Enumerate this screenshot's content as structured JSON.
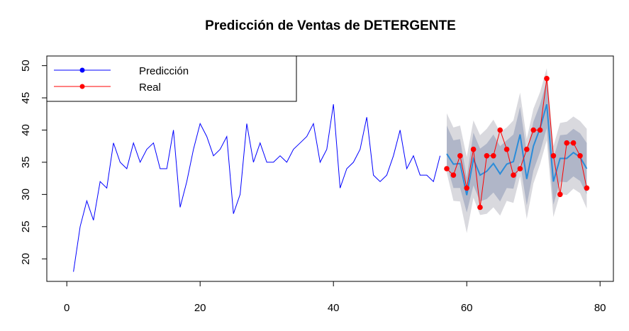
{
  "chart_data": {
    "type": "line",
    "title": "Predicción de Ventas de DETERGENTE",
    "xlabel": "",
    "ylabel": "",
    "xlim": [
      -3,
      82
    ],
    "ylim": [
      16.5,
      51.5
    ],
    "xticks": [
      0,
      20,
      40,
      60,
      80
    ],
    "yticks": [
      20,
      25,
      30,
      35,
      40,
      45,
      50
    ],
    "grid": false,
    "legend_position": "top-left",
    "legend": [
      {
        "label": "Predicción",
        "color": "#0000ff"
      },
      {
        "label": "Real",
        "color": "#ff0000"
      }
    ],
    "history": {
      "color": "#0000ff",
      "x": [
        1,
        2,
        3,
        4,
        5,
        6,
        7,
        8,
        9,
        10,
        11,
        12,
        13,
        14,
        15,
        16,
        17,
        18,
        19,
        20,
        21,
        22,
        23,
        24,
        25,
        26,
        27,
        28,
        29,
        30,
        31,
        32,
        33,
        34,
        35,
        36,
        37,
        38,
        39,
        40,
        41,
        42,
        43,
        44,
        45,
        46,
        47,
        48,
        49,
        50,
        51,
        52,
        53,
        54,
        55,
        56
      ],
      "y": [
        18,
        25,
        29,
        26,
        32,
        31,
        38,
        35,
        34,
        38,
        35,
        37,
        38,
        34,
        34,
        40,
        28,
        32,
        37,
        41,
        39,
        36,
        37,
        39,
        27,
        30,
        41,
        35,
        38,
        35,
        35,
        36,
        35,
        37,
        38,
        39,
        41,
        35,
        37,
        44,
        31,
        34,
        35,
        37,
        42,
        33,
        32,
        33,
        36,
        40,
        34,
        36,
        33,
        33,
        32,
        36
      ]
    },
    "forecast": {
      "color": "#2b8cd9",
      "x": [
        57,
        58,
        59,
        60,
        61,
        62,
        63,
        64,
        65,
        66,
        67,
        68,
        69,
        70,
        71,
        72,
        73,
        74,
        75,
        76,
        77,
        78
      ],
      "mean": [
        36.3,
        34.7,
        34.8,
        29.9,
        35.5,
        33.0,
        33.6,
        34.8,
        33.2,
        34.7,
        35.1,
        39.3,
        32.4,
        37.5,
        40.3,
        44.0,
        32.0,
        35.6,
        35.6,
        36.5,
        35.8,
        34.0
      ],
      "lo80": [
        34.6,
        31.0,
        31.0,
        27.2,
        31.4,
        28.9,
        29.3,
        30.3,
        28.9,
        31.0,
        30.9,
        35.0,
        28.3,
        33.7,
        36.6,
        40.3,
        28.4,
        32.0,
        31.9,
        32.8,
        32.1,
        30.0
      ],
      "hi80": [
        40.7,
        38.4,
        38.6,
        32.6,
        39.6,
        37.1,
        37.9,
        39.3,
        37.5,
        38.4,
        39.3,
        43.6,
        36.5,
        41.3,
        44.0,
        47.7,
        35.6,
        39.2,
        39.3,
        40.2,
        39.5,
        38.0
      ],
      "lo95": [
        33.4,
        29.0,
        28.9,
        24.0,
        29.5,
        26.8,
        27.0,
        28.0,
        26.7,
        29.0,
        28.7,
        32.8,
        26.2,
        31.7,
        34.7,
        38.4,
        26.5,
        30.1,
        29.9,
        30.9,
        30.2,
        27.8
      ],
      "hi95": [
        42.6,
        40.4,
        40.7,
        35.8,
        41.5,
        39.2,
        40.2,
        41.6,
        39.7,
        40.4,
        41.5,
        45.8,
        38.6,
        43.3,
        45.9,
        49.6,
        37.5,
        41.1,
        41.3,
        42.1,
        41.4,
        40.2
      ]
    },
    "real": {
      "color": "#ff0000",
      "x": [
        57,
        58,
        59,
        60,
        61,
        62,
        63,
        64,
        65,
        66,
        67,
        68,
        69,
        70,
        71,
        72,
        73,
        74,
        75,
        76,
        77,
        78
      ],
      "y": [
        34,
        33,
        36,
        31,
        37,
        28,
        36,
        36,
        40,
        37,
        33,
        34,
        37,
        40,
        40,
        48,
        36,
        30,
        38,
        38,
        36,
        31
      ]
    },
    "band_colors": {
      "inner": "#b0b6c8",
      "outer": "#d9d9de"
    }
  }
}
